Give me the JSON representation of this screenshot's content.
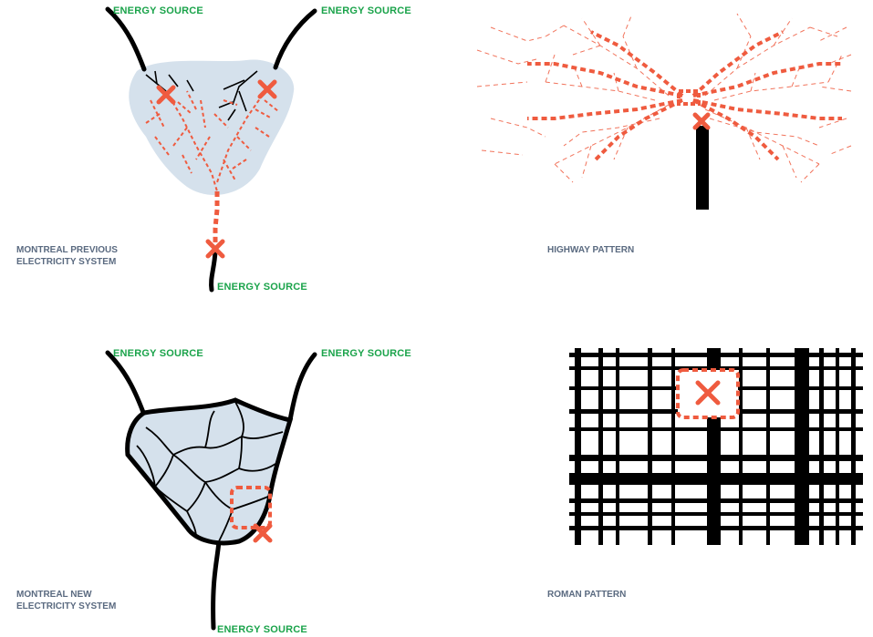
{
  "colors": {
    "energy_label": "#1aa34a",
    "caption": "#5a6a80",
    "network": "#ef5b3f",
    "failure_mark": "#ef5b3f",
    "area_fill": "#d5e1ec",
    "grid": "#000000"
  },
  "panels": {
    "previous": {
      "energy_labels": [
        "ENERGY SOURCE",
        "ENERGY SOURCE",
        "ENERGY SOURCE"
      ],
      "caption_lines": [
        "MONTREAL PREVIOUS",
        "ELECTRICITY SYSTEM"
      ]
    },
    "highway": {
      "caption_lines": [
        "HIGHWAY PATTERN"
      ]
    },
    "new": {
      "energy_labels": [
        "ENERGY SOURCE",
        "ENERGY SOURCE",
        "ENERGY SOURCE"
      ],
      "caption_lines": [
        "MONTREAL NEW",
        "ELECTRICITY SYSTEM"
      ]
    },
    "roman": {
      "caption_lines": [
        "ROMAN PATTERN"
      ]
    }
  },
  "icons": {
    "failure": "x-mark-icon"
  }
}
